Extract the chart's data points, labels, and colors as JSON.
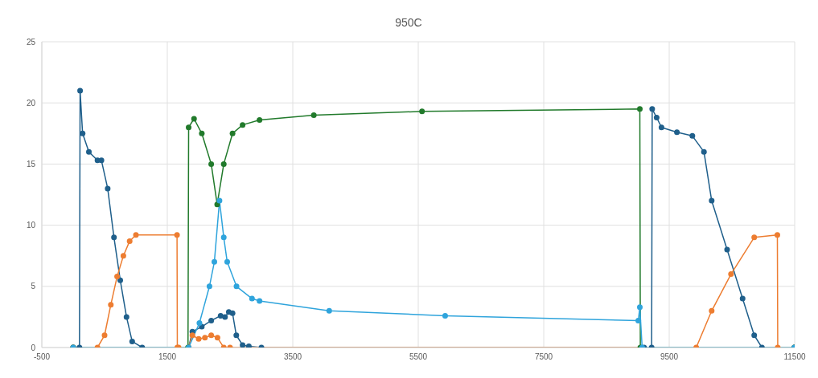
{
  "chart_data": {
    "type": "line",
    "title": "950C",
    "xlim": [
      -500,
      11500
    ],
    "xticks": [
      -500,
      1500,
      3500,
      5500,
      7500,
      9500,
      11500
    ],
    "ylim": [
      0,
      25
    ],
    "yticks": [
      0,
      5,
      10,
      15,
      20,
      25
    ],
    "grid": true,
    "legend": false,
    "marker": "circle",
    "line_style": "solid",
    "series": [
      {
        "color": "#1f5f8b",
        "x": [
          0,
          100,
          110,
          150,
          250,
          387,
          450,
          550,
          650,
          750,
          850,
          940,
          1100,
          1840,
          1900,
          2050,
          2200,
          2350,
          2420,
          2480,
          2540,
          2600,
          2700,
          2800,
          3000,
          9100,
          9220,
          9229,
          9300,
          9377,
          9623,
          9869,
          10054,
          10177,
          10423,
          10670,
          10855,
          10978,
          11495
        ],
        "values": [
          0,
          0,
          21,
          17.5,
          16,
          15.3,
          15.3,
          13,
          9,
          5.5,
          2.5,
          0.5,
          0,
          0,
          1.3,
          1.7,
          2.2,
          2.6,
          2.5,
          2.9,
          2.8,
          1,
          0.2,
          0.1,
          0,
          0,
          0,
          19.5,
          18.8,
          18,
          17.6,
          17.3,
          16,
          12,
          8,
          4,
          1,
          0,
          0
        ]
      },
      {
        "color": "#ed7d31",
        "x": [
          0,
          387,
          500,
          600,
          700,
          800,
          900,
          1000,
          1655,
          1660,
          1680,
          1840,
          1900,
          2000,
          2100,
          2200,
          2300,
          2400,
          2500,
          9931,
          10177,
          10485,
          10855,
          11224,
          11230,
          11495
        ],
        "values": [
          0,
          0,
          1,
          3.5,
          5.8,
          7.5,
          8.7,
          9.2,
          9.2,
          0,
          0,
          0,
          1,
          0.7,
          0.8,
          1,
          0.8,
          0,
          0,
          0,
          3,
          6,
          9,
          9.2,
          0,
          0
        ]
      },
      {
        "color": "#217a2b",
        "x": [
          0,
          1830,
          1840,
          1926,
          2050,
          2200,
          2295,
          2400,
          2540,
          2700,
          2970,
          3835,
          5560,
          9032,
          9040,
          11495
        ],
        "values": [
          0,
          0,
          18,
          18.7,
          17.5,
          15,
          11.7,
          15,
          17.5,
          18.2,
          18.6,
          19,
          19.3,
          19.5,
          0,
          0
        ]
      },
      {
        "color": "#2fa4dc",
        "x": [
          0,
          1840,
          2012,
          2172,
          2250,
          2332,
          2400,
          2455,
          2603,
          2850,
          2970,
          4081,
          5929,
          9007,
          9032,
          9069,
          11495
        ],
        "values": [
          0,
          0,
          2,
          5,
          7,
          12,
          9,
          7,
          5,
          4,
          3.8,
          3,
          2.6,
          2.2,
          3.3,
          0,
          0
        ]
      }
    ]
  }
}
